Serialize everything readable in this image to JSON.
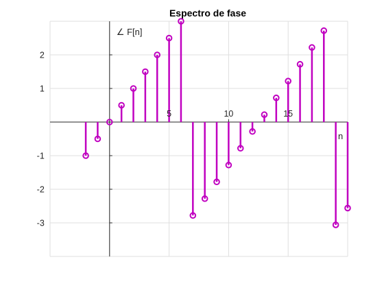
{
  "chart_data": {
    "type": "stem",
    "title": "Espectro de fase",
    "xlabel": "n",
    "ylabel": "∠ F[n]",
    "xlim": [
      -5,
      20
    ],
    "ylim": [
      -4,
      3
    ],
    "xticks": [
      5,
      10,
      15
    ],
    "yticks": [
      -3,
      -2,
      -1,
      1,
      2
    ],
    "grid": true,
    "axis_location": "origin",
    "color": "#c000c0",
    "series": [
      {
        "x": [
          -2,
          -1,
          0,
          1,
          2,
          3,
          4,
          5,
          6,
          7,
          8,
          9,
          10,
          11,
          12,
          13,
          14,
          15,
          16,
          17,
          18,
          19,
          20
        ],
        "values": [
          -1.0,
          -0.5,
          0,
          0.5,
          1.0,
          1.5,
          2.0,
          2.5,
          3.0,
          -2.78,
          -2.28,
          -1.78,
          -1.28,
          -0.78,
          -0.28,
          0.22,
          0.72,
          1.22,
          1.72,
          2.22,
          2.72,
          -3.06,
          -2.56
        ]
      }
    ]
  }
}
